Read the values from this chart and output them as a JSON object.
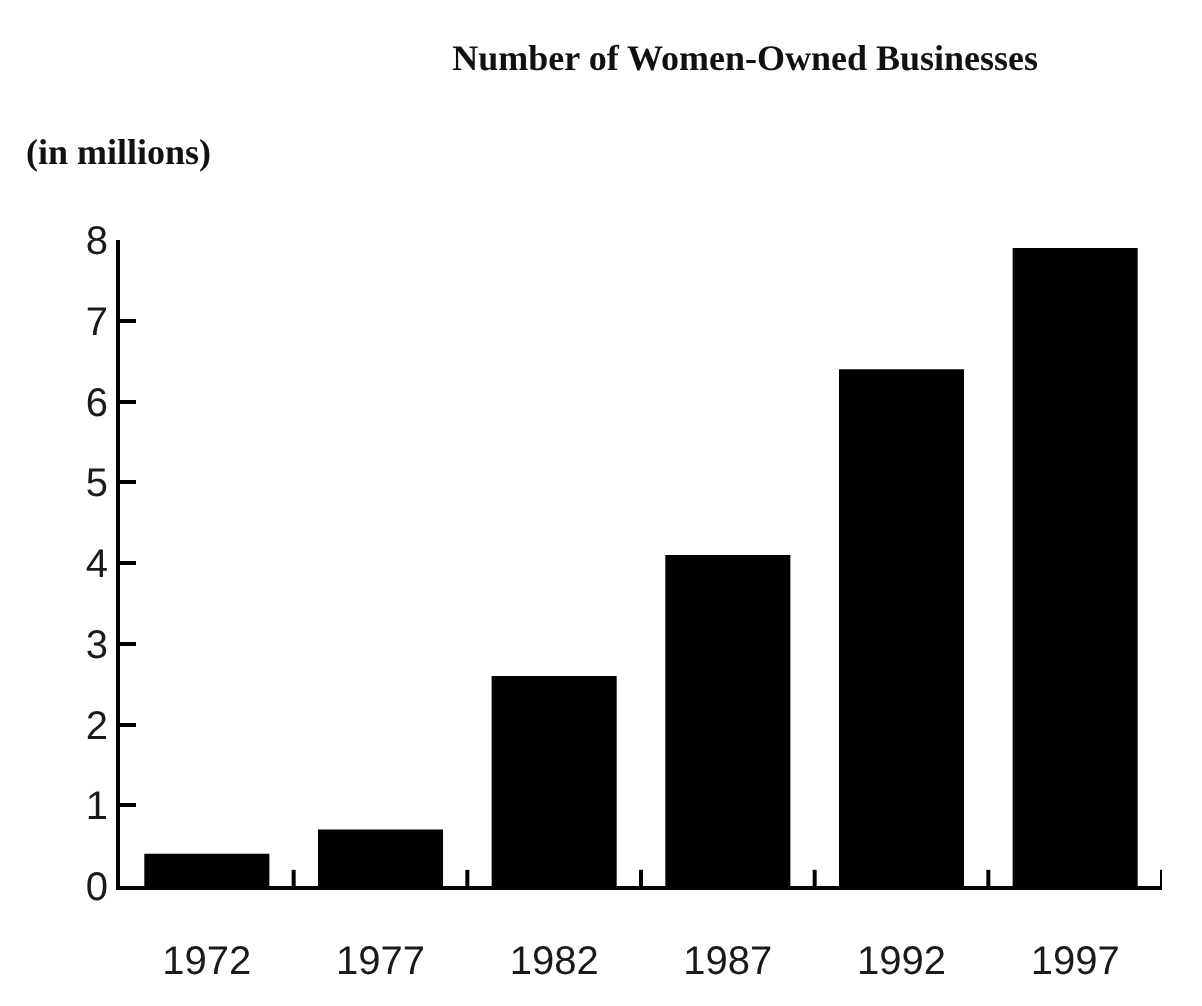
{
  "chart_data": {
    "type": "bar",
    "title": "Number of Women-Owned Businesses",
    "ylabel": "(in millions)",
    "categories": [
      "1972",
      "1977",
      "1982",
      "1987",
      "1992",
      "1997"
    ],
    "values": [
      0.4,
      0.7,
      2.6,
      4.1,
      6.4,
      7.9
    ],
    "color": "#000000",
    "ylim": [
      0,
      8
    ],
    "yticks": [
      0,
      1,
      2,
      3,
      4,
      5,
      6,
      7,
      8
    ]
  }
}
